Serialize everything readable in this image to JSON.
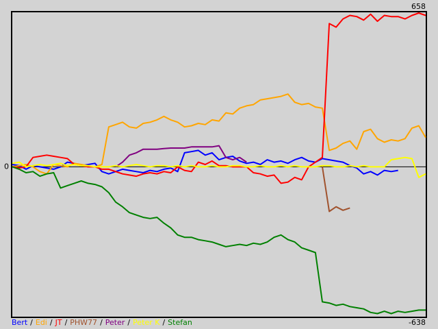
{
  "chart_data": {
    "type": "line",
    "ylim": [
      -638,
      658
    ],
    "yticks": [
      -638,
      0,
      658
    ],
    "legend_separator": "/",
    "series": [
      {
        "name": "Bert",
        "color": "#0000ff",
        "values": [
          10,
          5,
          -10,
          5,
          0,
          -5,
          -10,
          0,
          20,
          15,
          5,
          10,
          15,
          -20,
          -30,
          -20,
          -10,
          -15,
          -20,
          -25,
          -15,
          -20,
          -10,
          -5,
          -20,
          60,
          65,
          70,
          50,
          60,
          30,
          40,
          45,
          25,
          15,
          20,
          10,
          30,
          20,
          25,
          15,
          30,
          40,
          25,
          20,
          35,
          30,
          25,
          20,
          5,
          -5,
          -30,
          -20,
          -35,
          -15,
          -20,
          -15,
          null,
          null,
          null,
          null
        ]
      },
      {
        "name": "Edi",
        "color": "#ffa500",
        "values": [
          0,
          5,
          10,
          0,
          -20,
          -30,
          10,
          5,
          0,
          15,
          10,
          5,
          0,
          10,
          170,
          180,
          190,
          170,
          165,
          185,
          190,
          200,
          215,
          200,
          190,
          170,
          175,
          185,
          180,
          200,
          195,
          230,
          225,
          250,
          260,
          265,
          285,
          290,
          295,
          300,
          310,
          275,
          265,
          270,
          255,
          250,
          70,
          80,
          100,
          110,
          75,
          150,
          160,
          120,
          105,
          115,
          110,
          120,
          165,
          175,
          125
        ]
      },
      {
        "name": "JT",
        "color": "#ff0000",
        "values": [
          0,
          -5,
          0,
          40,
          45,
          50,
          45,
          40,
          35,
          10,
          5,
          0,
          0,
          -10,
          -10,
          -20,
          -30,
          -35,
          -40,
          -30,
          -25,
          -30,
          -20,
          -25,
          0,
          -15,
          -20,
          20,
          10,
          25,
          5,
          5,
          0,
          0,
          0,
          -25,
          -30,
          -40,
          -35,
          -70,
          -65,
          -45,
          -55,
          0,
          20,
          40,
          610,
          595,
          630,
          645,
          640,
          625,
          650,
          620,
          645,
          640,
          640,
          630,
          645,
          655,
          645
        ]
      },
      {
        "name": "PHW77",
        "color": "#a0522d",
        "values": [
          null,
          null,
          null,
          null,
          null,
          null,
          null,
          null,
          null,
          null,
          null,
          null,
          null,
          null,
          null,
          null,
          null,
          null,
          null,
          null,
          null,
          null,
          null,
          null,
          null,
          null,
          null,
          null,
          null,
          null,
          null,
          null,
          null,
          null,
          null,
          null,
          null,
          null,
          null,
          null,
          null,
          null,
          null,
          null,
          null,
          0,
          -190,
          -170,
          -185,
          -175,
          null,
          null,
          null,
          null,
          null,
          null,
          null,
          null,
          null,
          null,
          null
        ]
      },
      {
        "name": "Peter",
        "color": "#800080",
        "values": [
          null,
          null,
          null,
          null,
          null,
          null,
          null,
          null,
          null,
          null,
          null,
          null,
          null,
          null,
          null,
          0,
          20,
          50,
          60,
          75,
          75,
          75,
          78,
          80,
          80,
          80,
          85,
          85,
          85,
          85,
          90,
          40,
          30,
          40,
          20,
          null,
          null,
          null,
          null,
          null,
          null,
          null,
          null,
          null,
          null,
          null,
          null,
          null,
          null,
          null,
          null,
          null,
          null,
          null,
          null,
          null,
          null,
          null,
          null,
          null,
          null
        ]
      },
      {
        "name": "Peter K",
        "color": "#ffff00",
        "values": [
          15,
          20,
          0,
          5,
          10,
          5,
          10,
          15,
          5,
          10,
          5,
          5,
          0,
          0,
          0,
          5,
          0,
          5,
          10,
          5,
          0,
          5,
          5,
          0,
          5,
          0,
          5,
          0,
          0,
          5,
          0,
          0,
          5,
          5,
          0,
          0,
          5,
          0,
          0,
          5,
          0,
          5,
          0,
          0,
          0,
          5,
          5,
          0,
          0,
          5,
          0,
          5,
          0,
          0,
          0,
          30,
          35,
          40,
          35,
          -45,
          -30
        ]
      },
      {
        "name": "Stefan",
        "color": "#008000",
        "values": [
          0,
          -10,
          -25,
          -20,
          -40,
          -30,
          -25,
          -90,
          -80,
          -70,
          -60,
          -70,
          -75,
          -85,
          -110,
          -150,
          -170,
          -195,
          -205,
          -215,
          -220,
          -215,
          -240,
          -260,
          -290,
          -300,
          -300,
          -310,
          -315,
          -320,
          -330,
          -340,
          -335,
          -330,
          -335,
          -325,
          -330,
          -320,
          -300,
          -290,
          -310,
          -320,
          -345,
          -355,
          -365,
          -575,
          -580,
          -590,
          -585,
          -595,
          -600,
          -605,
          -620,
          -625,
          -615,
          -625,
          -615,
          -620,
          -615,
          -610,
          -610
        ]
      }
    ]
  }
}
